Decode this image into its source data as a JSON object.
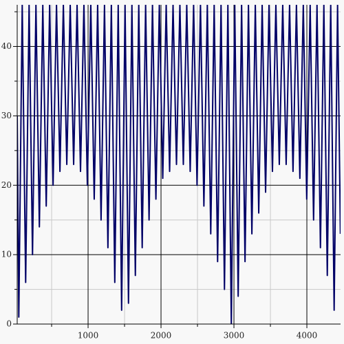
{
  "chart_data": {
    "type": "line",
    "x": [
      28,
      50,
      97,
      144,
      191,
      238,
      285,
      332,
      379,
      426,
      473,
      520,
      567,
      614,
      661,
      708,
      755,
      802,
      849,
      896,
      943,
      990,
      1037,
      1084,
      1131,
      1178,
      1225,
      1272,
      1319,
      1366,
      1413,
      1460,
      1507,
      1554,
      1601,
      1648,
      1695,
      1742,
      1789,
      1836,
      1883,
      1930,
      1977,
      2024,
      2071,
      2118,
      2165,
      2212,
      2259,
      2306,
      2353,
      2400,
      2447,
      2494,
      2541,
      2588,
      2635,
      2682,
      2729,
      2776,
      2823,
      2870,
      2917,
      2964,
      3011,
      3058,
      3105,
      3152,
      3199,
      3246,
      3293,
      3340,
      3387,
      3434,
      3481,
      3528,
      3575,
      3622,
      3669,
      3716,
      3763,
      3810,
      3857,
      3904,
      3951,
      3998,
      4045,
      4092,
      4139,
      4186,
      4233,
      4280,
      4327,
      4374,
      4421,
      4460
    ],
    "series": [
      {
        "color": "#000066",
        "values": [
          30,
          1,
          46,
          6,
          46,
          10,
          46,
          14,
          46,
          17,
          46,
          20,
          46,
          22,
          46,
          23,
          46,
          23,
          46,
          22,
          46,
          20,
          46,
          18,
          46,
          15,
          46,
          11,
          46,
          6,
          46,
          2,
          46,
          3,
          46,
          7,
          46,
          11,
          46,
          15,
          46,
          18,
          46,
          21,
          46,
          22,
          46,
          23,
          46,
          23,
          46,
          22,
          46,
          20,
          46,
          17,
          46,
          13,
          46,
          9,
          46,
          5,
          46,
          0,
          46,
          4,
          46,
          9,
          46,
          13,
          46,
          16,
          46,
          19,
          46,
          22,
          46,
          23,
          46,
          23,
          46,
          22,
          46,
          21,
          46,
          18,
          46,
          15,
          46,
          11,
          46,
          7,
          46,
          2,
          46,
          13
        ]
      }
    ],
    "xlim": [
      28,
      4462
    ],
    "ylim": [
      0,
      46
    ],
    "xticks": [
      1000,
      2000,
      3000,
      4000
    ],
    "yticks": [
      0,
      10,
      20,
      30,
      40
    ],
    "minor_xticks": [
      500,
      1500,
      2500,
      3500
    ],
    "minor_yticks": [
      5,
      15,
      25,
      35,
      45
    ],
    "grid": true
  }
}
